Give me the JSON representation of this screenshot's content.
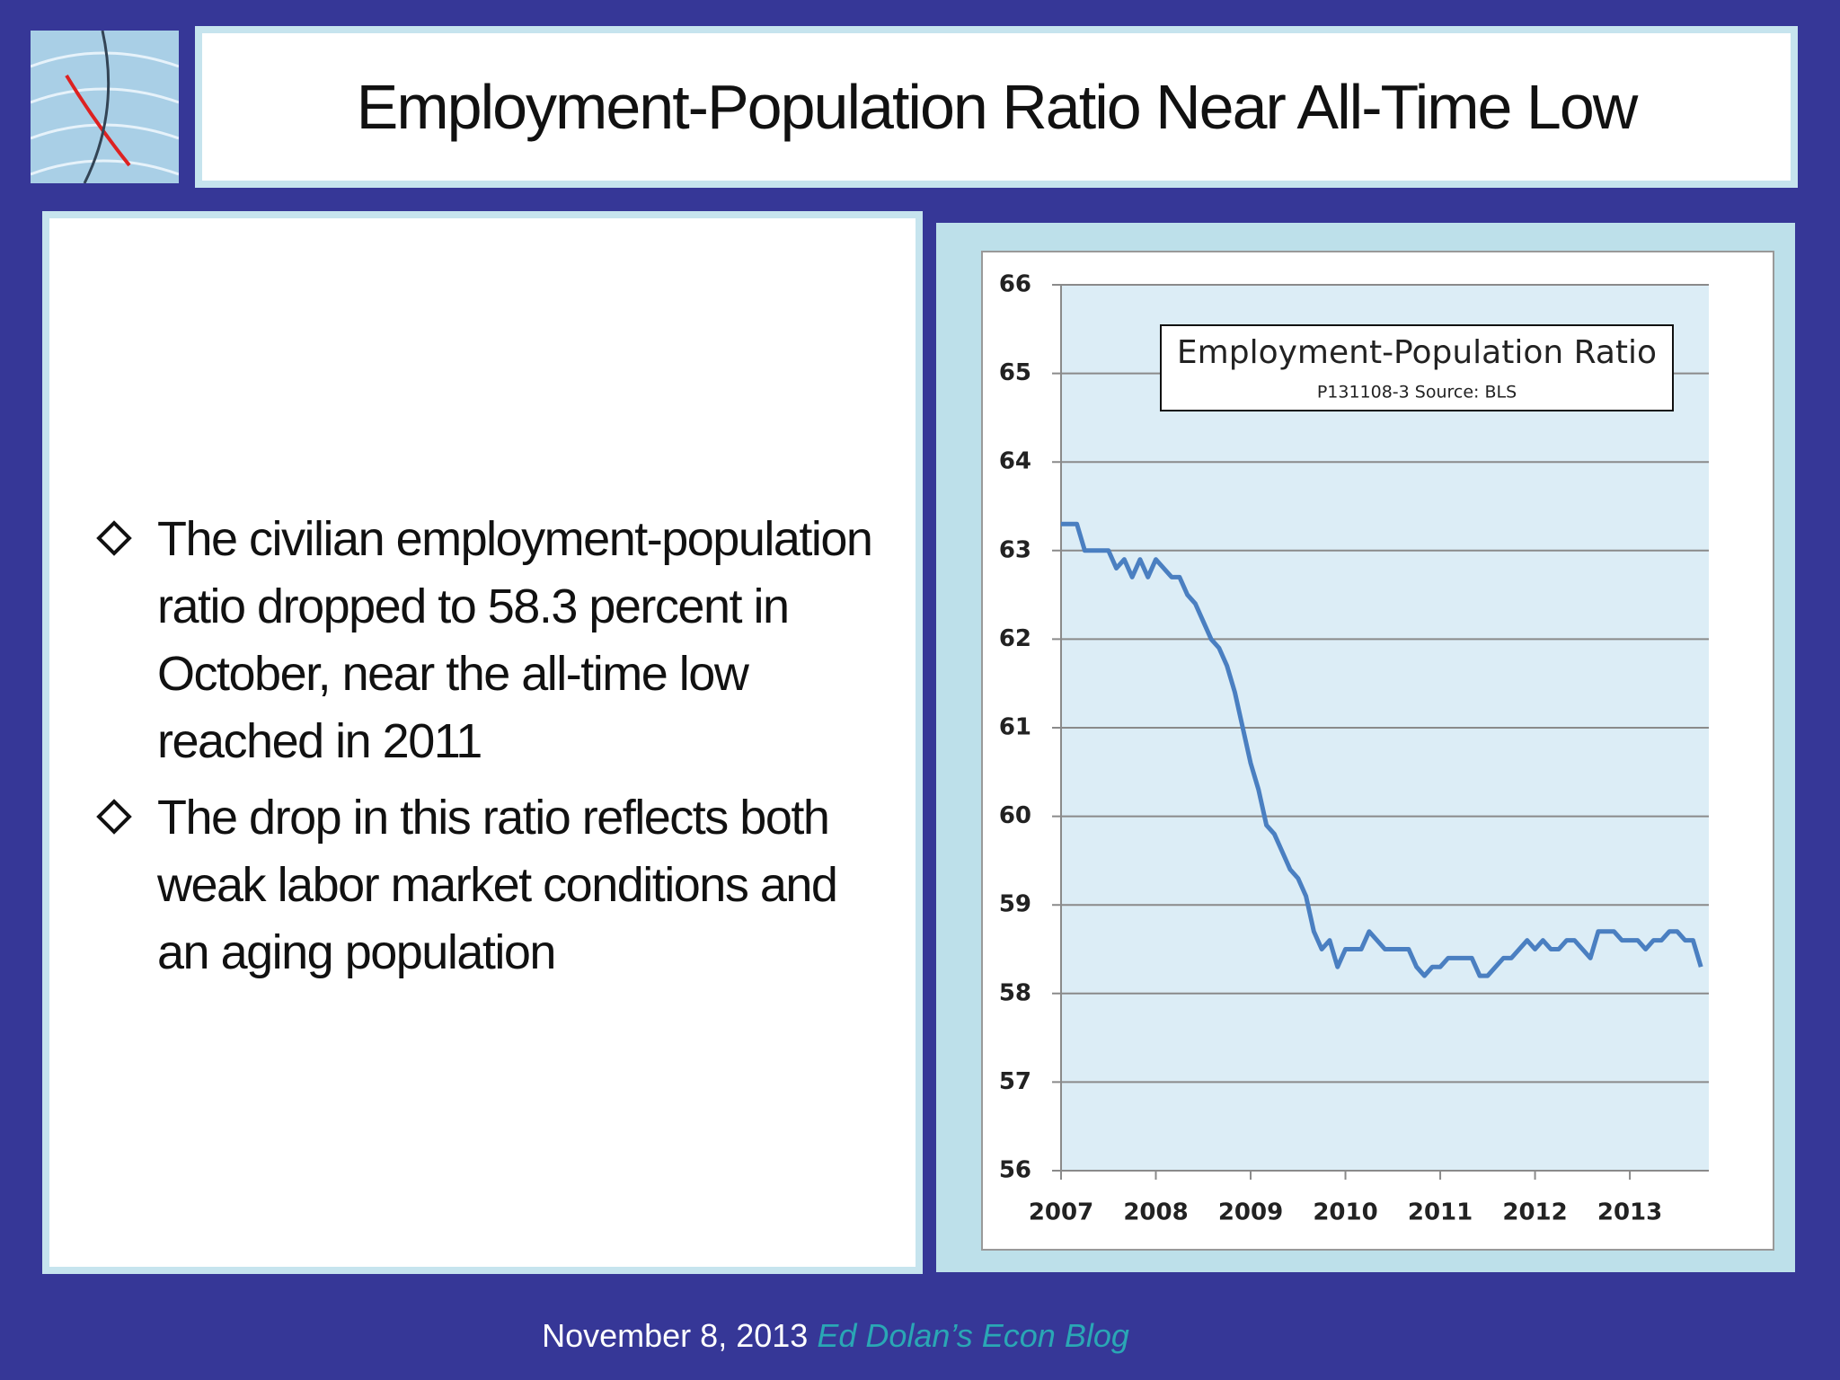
{
  "slide": {
    "title": "Employment-Population Ratio Near All-Time Low",
    "bullets": [
      "The civilian employment-population ratio dropped to 58.3 percent in October, near the all-time low reached in 2011",
      "The drop in this ratio reflects both weak labor market conditions and an aging population"
    ],
    "footer_date": "November 8, 2013",
    "footer_blog": "Ed Dolan’s Econ Blog"
  },
  "chart_data": {
    "type": "line",
    "title": "Employment-Population Ratio",
    "subtitle": "P131108-3 Source: BLS",
    "categories": [
      "2007",
      null,
      null,
      null,
      null,
      null,
      null,
      null,
      null,
      null,
      null,
      null,
      "2008",
      null,
      null,
      null,
      null,
      null,
      null,
      null,
      null,
      null,
      null,
      null,
      "2009",
      null,
      null,
      null,
      null,
      null,
      null,
      null,
      null,
      null,
      null,
      null,
      "2010",
      null,
      null,
      null,
      null,
      null,
      null,
      null,
      null,
      null,
      null,
      null,
      "2011",
      null,
      null,
      null,
      null,
      null,
      null,
      null,
      null,
      null,
      null,
      null,
      "2012",
      null,
      null,
      null,
      null,
      null,
      null,
      null,
      null,
      null,
      null,
      null,
      "2013",
      null,
      null,
      null,
      null,
      null,
      null,
      null,
      null,
      null
    ],
    "values": [
      63.3,
      63.3,
      63.3,
      63.0,
      63.0,
      63.0,
      63.0,
      62.8,
      62.9,
      62.7,
      62.9,
      62.7,
      62.9,
      62.8,
      62.7,
      62.7,
      62.5,
      62.4,
      62.2,
      62.0,
      61.9,
      61.7,
      61.4,
      61.0,
      60.6,
      60.3,
      59.9,
      59.8,
      59.6,
      59.4,
      59.3,
      59.1,
      58.7,
      58.5,
      58.6,
      58.3,
      58.5,
      58.5,
      58.5,
      58.7,
      58.6,
      58.5,
      58.5,
      58.5,
      58.5,
      58.3,
      58.2,
      58.3,
      58.3,
      58.4,
      58.4,
      58.4,
      58.4,
      58.2,
      58.2,
      58.3,
      58.4,
      58.4,
      58.5,
      58.6,
      58.5,
      58.6,
      58.5,
      58.5,
      58.6,
      58.6,
      58.5,
      58.4,
      58.7,
      58.7,
      58.7,
      58.6,
      58.6,
      58.6,
      58.5,
      58.6,
      58.6,
      58.7,
      58.7,
      58.6,
      58.6,
      58.3
    ],
    "color": "#4a7fc1",
    "ylim": [
      56,
      66
    ],
    "yticks": [
      56,
      57,
      58,
      59,
      60,
      61,
      62,
      63,
      64,
      65,
      66
    ],
    "grid": true
  }
}
